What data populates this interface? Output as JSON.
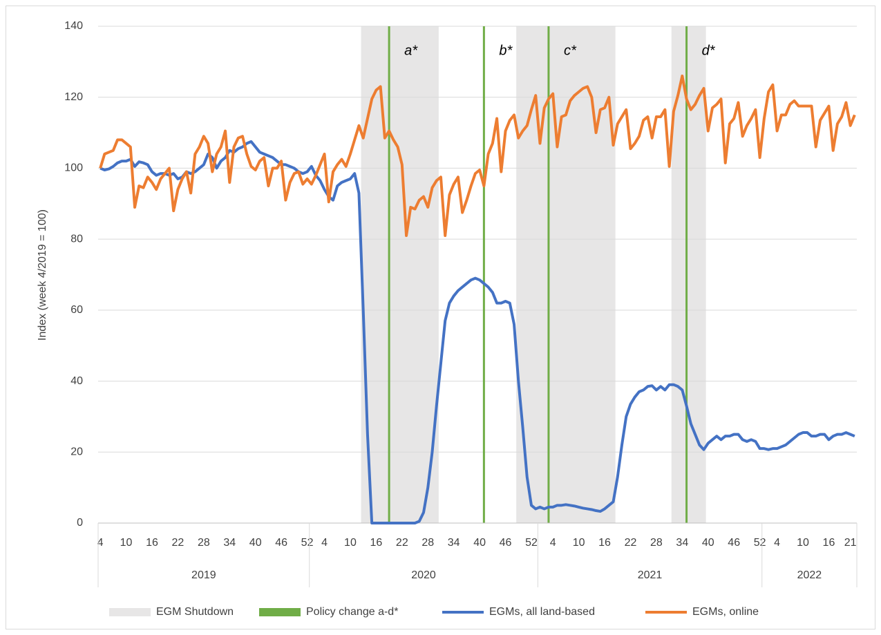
{
  "chart_data": {
    "type": "line",
    "y_label": "Index (week 4/2019 = 100)",
    "ylim": [
      0,
      140
    ],
    "yticks": [
      0,
      20,
      40,
      60,
      80,
      100,
      120,
      140
    ],
    "grid": true,
    "categories": [
      "4",
      null,
      null,
      null,
      null,
      null,
      "10",
      null,
      null,
      null,
      null,
      null,
      "16",
      null,
      null,
      null,
      null,
      null,
      "22",
      null,
      null,
      null,
      null,
      null,
      "28",
      null,
      null,
      null,
      null,
      null,
      "34",
      null,
      null,
      null,
      null,
      null,
      "40",
      null,
      null,
      null,
      null,
      null,
      "46",
      null,
      null,
      null,
      null,
      null,
      "52",
      null,
      null,
      null,
      "4",
      null,
      null,
      null,
      null,
      null,
      "10",
      null,
      null,
      null,
      null,
      null,
      "16",
      null,
      null,
      null,
      null,
      null,
      "22",
      null,
      null,
      null,
      null,
      null,
      "28",
      null,
      null,
      null,
      null,
      null,
      "34",
      null,
      null,
      null,
      null,
      null,
      "40",
      null,
      null,
      null,
      null,
      null,
      "46",
      null,
      null,
      null,
      null,
      null,
      "52",
      null,
      null,
      null,
      null,
      "4",
      null,
      null,
      null,
      null,
      null,
      "10",
      null,
      null,
      null,
      null,
      null,
      "16",
      null,
      null,
      null,
      null,
      null,
      "22",
      null,
      null,
      null,
      null,
      null,
      "28",
      null,
      null,
      null,
      null,
      null,
      "34",
      null,
      null,
      null,
      null,
      null,
      "40",
      null,
      null,
      null,
      null,
      null,
      "46",
      null,
      null,
      null,
      null,
      null,
      "52",
      null,
      null,
      null,
      "4",
      null,
      null,
      null,
      null,
      null,
      "10",
      null,
      null,
      null,
      null,
      null,
      "16",
      null,
      null,
      null,
      null,
      "21",
      null
    ],
    "year_groups": [
      {
        "label": "2019",
        "weeks": 49
      },
      {
        "label": "2020",
        "weeks": 53
      },
      {
        "label": "2021",
        "weeks": 52
      },
      {
        "label": "2022",
        "weeks": 22
      }
    ],
    "shutdown_label": "EGM Shutdown",
    "shutdown_color": "#e7e6e6",
    "shutdowns": [
      [
        61,
        78
      ],
      [
        97,
        119
      ],
      [
        133,
        140
      ]
    ],
    "policy_label": "Policy change a-d*",
    "policy_color": "#70ad47",
    "policy_changes": [
      {
        "label": "a*",
        "index": 67
      },
      {
        "label": "b*",
        "index": 89
      },
      {
        "label": "c*",
        "index": 104
      },
      {
        "label": "d*",
        "index": 136
      }
    ],
    "series": [
      {
        "name": "EGMs, all land-based",
        "color": "#4472c4",
        "values": [
          100,
          99.5,
          99.8,
          100.5,
          101.5,
          102,
          102,
          102.5,
          100.5,
          101.8,
          101.5,
          101,
          99,
          98,
          98.5,
          98.5,
          98,
          98.5,
          97,
          97.5,
          99,
          98.5,
          99,
          100,
          101,
          104,
          103,
          100,
          102,
          103,
          105,
          104.5,
          105.5,
          106,
          107,
          107.5,
          106,
          104.5,
          104,
          103.5,
          103,
          102,
          101,
          101,
          100.5,
          100,
          99,
          98.5,
          99,
          100.5,
          98,
          96.5,
          94,
          92,
          91,
          95,
          96,
          96.5,
          97,
          98.5,
          93,
          60,
          25,
          0,
          0,
          0,
          0,
          0,
          0,
          0,
          0,
          0,
          0,
          0,
          0.5,
          3,
          10,
          20,
          33,
          45,
          57,
          62,
          64,
          65.5,
          66.5,
          67.5,
          68.5,
          69,
          68.5,
          67.5,
          66.5,
          65,
          62,
          62,
          62.5,
          62,
          56,
          40,
          27,
          13,
          5,
          4,
          4.5,
          4,
          4.5,
          4.5,
          5,
          5,
          5.2,
          5,
          4.8,
          4.5,
          4.2,
          4,
          3.8,
          3.5,
          3.3,
          4,
          5,
          6,
          13,
          22,
          30,
          33.5,
          35.5,
          37,
          37.5,
          38.5,
          38.7,
          37.5,
          38.5,
          37.5,
          39,
          39,
          38.5,
          37.5,
          33,
          28,
          25,
          22,
          20.7,
          22.5,
          23.5,
          24.5,
          23.5,
          24.5,
          24.5,
          25,
          25,
          23.5,
          23,
          23.5,
          23,
          21,
          21,
          20.7,
          21,
          21,
          21.5,
          22,
          23,
          24,
          25,
          25.5,
          25.5,
          24.5,
          24.5,
          25,
          25,
          23.5,
          24.5,
          25,
          25,
          25.5,
          25,
          24.5
        ]
      },
      {
        "name": "EGMs, online",
        "color": "#ed7d31",
        "values": [
          100,
          104,
          104.5,
          105,
          108,
          108,
          107,
          106,
          89,
          95,
          94.5,
          97.5,
          96,
          94,
          97,
          98.5,
          100,
          88,
          94,
          97,
          99,
          93,
          104,
          106,
          109,
          107,
          99,
          104,
          106,
          110.5,
          96,
          106,
          108.5,
          109,
          104,
          100.5,
          99.5,
          102,
          103,
          95,
          100,
          100,
          102,
          91,
          96,
          98.5,
          99,
          95.5,
          97,
          95.5,
          98,
          101,
          104,
          90.5,
          99,
          101,
          102.5,
          100.5,
          104,
          108,
          112,
          108.5,
          114,
          119.5,
          122,
          123,
          108.5,
          110.5,
          108,
          106,
          101,
          81,
          89,
          88.5,
          91,
          92,
          89,
          94.5,
          96.5,
          97.5,
          81,
          92.5,
          95.5,
          97.5,
          87.5,
          91,
          95,
          98.5,
          99.5,
          95,
          104,
          107,
          114,
          99,
          110.5,
          113.5,
          115,
          108.5,
          110.5,
          112,
          116.5,
          120.5,
          107,
          117,
          119.5,
          121,
          106,
          114.5,
          115,
          119,
          120.5,
          121.5,
          122.5,
          123,
          120,
          110,
          116.5,
          117,
          120,
          106.5,
          112.5,
          114.5,
          116.5,
          105.5,
          107,
          109,
          113.5,
          114.5,
          108.5,
          114.5,
          114.5,
          116.5,
          100.5,
          116,
          120.5,
          126,
          119.5,
          116.5,
          118,
          120.5,
          122.5,
          110.5,
          117,
          118,
          119.5,
          101.5,
          112.5,
          114,
          118.5,
          109,
          112,
          114,
          116.5,
          103,
          114,
          121.5,
          123.5,
          110.5,
          115,
          115,
          118,
          119,
          117.5,
          117.5,
          117.5,
          117.5,
          106,
          113.5,
          115.5,
          117.5,
          105,
          112.5,
          114.5,
          118.5,
          112,
          115
        ]
      }
    ]
  }
}
